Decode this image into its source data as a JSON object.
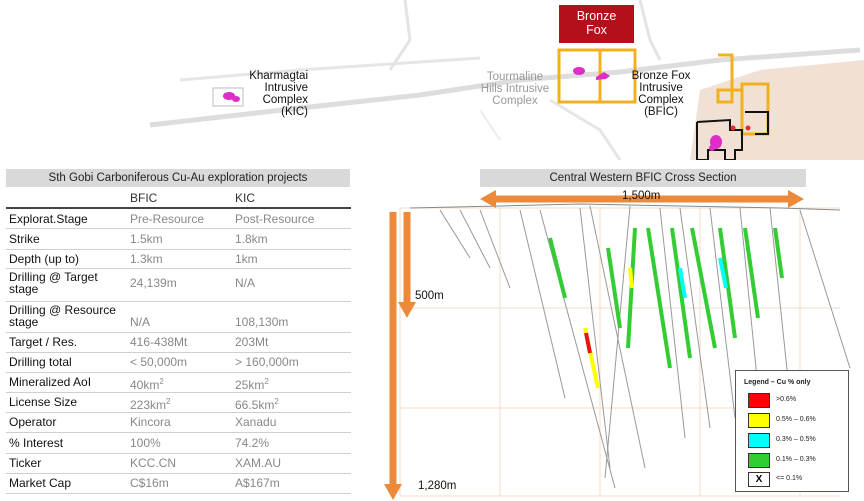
{
  "map": {
    "bronze_fox_box": [
      "Bronze",
      "Fox"
    ],
    "labels": {
      "kic": [
        "Kharmagtai",
        "Intrusive",
        "Complex",
        "(KIC)"
      ],
      "tourmaline": [
        "Tourmaline",
        "Hills Intrusive",
        "Complex"
      ],
      "bfic": [
        "Bronze Fox",
        "Intrusive",
        "Complex",
        "(BFIC)"
      ]
    }
  },
  "table": {
    "title": "Sth Gobi Carboniferous Cu-Au exploration projects",
    "columns": [
      "BFIC",
      "KIC"
    ],
    "rows": [
      {
        "label": "Explorat.Stage",
        "bfic": "Pre-Resource",
        "kic": "Post-Resource"
      },
      {
        "label": "Strike",
        "bfic": "1.5km",
        "kic": "1.8km"
      },
      {
        "label": "Depth (up to)",
        "bfic": "1.3km",
        "kic": "1km"
      },
      {
        "label": "Drilling @ Target stage",
        "bfic": "24,139m",
        "kic": "N/A"
      },
      {
        "label": "Drilling @ Resource stage",
        "bfic": "N/A",
        "kic": "108,130m"
      },
      {
        "label": "Target / Res.",
        "bfic": "416-438Mt",
        "kic": "203Mt"
      },
      {
        "label": "Drilling total",
        "bfic": "< 50,000m",
        "kic": "> 160,000m"
      },
      {
        "label": "Mineralized AoI",
        "bfic": " 40km",
        "bfic_sup": "2",
        "kic": "25km",
        "kic_sup": "2"
      },
      {
        "label": "License Size",
        "bfic": "223km",
        "bfic_sup": "2",
        "kic": "66.5km",
        "kic_sup": "2"
      },
      {
        "label": "Operator",
        "bfic": "Kincora",
        "kic": "Xanadu"
      },
      {
        "label": "% Interest",
        "bfic": "100%",
        "kic": "74.2%"
      },
      {
        "label": "Ticker",
        "bfic": "KCC.CN",
        "kic": "XAM.AU"
      },
      {
        "label": "Market Cap",
        "bfic": "C$16m",
        "kic": "A$167m"
      }
    ]
  },
  "cross_section": {
    "title": "Central Western BFIC Cross Section",
    "width_label": "1,500m",
    "depth_label_1": "500m",
    "depth_label_2": "1,280m",
    "legend": {
      "title": "Legend – Cu % only",
      "items": [
        {
          "label": ">0.6%",
          "color": "#ff0000"
        },
        {
          "label": "0.5% – 0.6%",
          "color": "#ffff00"
        },
        {
          "label": "0.3% – 0.5%",
          "color": "#00ffff"
        },
        {
          "label": "0.1% – 0.3%",
          "color": "#33cc33"
        },
        {
          "label": "<= 0.1%",
          "color": "#ffffff",
          "symbol": "X"
        }
      ]
    }
  },
  "colors": {
    "accent_orange": "#ed8a3a",
    "bronze_red": "#b3101b",
    "license_outline": "#f2b01e",
    "anomaly_magenta": "#e02cc8"
  }
}
